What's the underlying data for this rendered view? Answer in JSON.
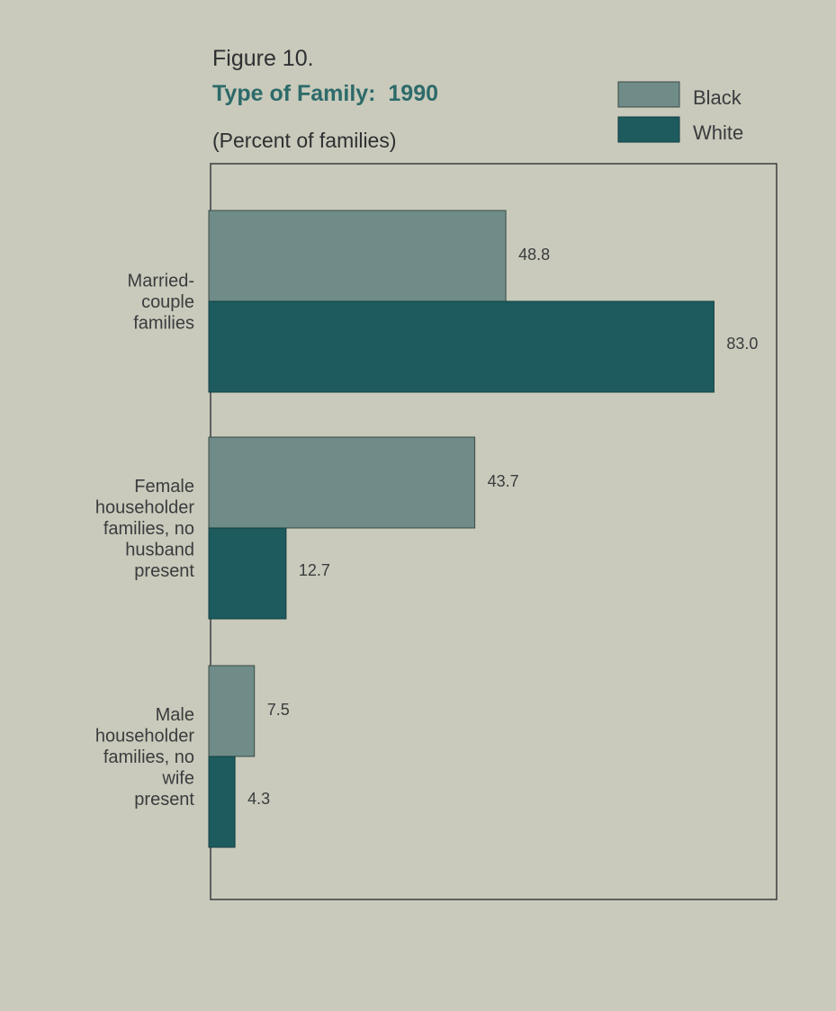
{
  "figure_label": "Figure 10.",
  "colors": {
    "background": "#c9cabb",
    "black_series": "#6f8c88",
    "white_series": "#1d5b5e",
    "title": "#2d6a6a"
  },
  "chart_data": {
    "type": "bar",
    "orientation": "horizontal",
    "title": "Type of Family:  1990",
    "subtitle": "(Percent of families)",
    "categories": [
      [
        "Married-",
        "couple",
        "families"
      ],
      [
        "Female",
        "householder",
        "families, no",
        "husband",
        "present"
      ],
      [
        "Male",
        "householder",
        "families, no",
        "wife",
        "present"
      ]
    ],
    "series": [
      {
        "name": "Black",
        "values": [
          48.8,
          43.7,
          7.5
        ],
        "labels": [
          "48.8",
          "43.7",
          "7.5"
        ]
      },
      {
        "name": "White",
        "values": [
          83.0,
          12.7,
          4.3
        ],
        "labels": [
          "83.0",
          "12.7",
          "4.3"
        ]
      }
    ],
    "xlim": [
      0,
      93
    ],
    "grid": false,
    "legend_position": "top-right"
  }
}
